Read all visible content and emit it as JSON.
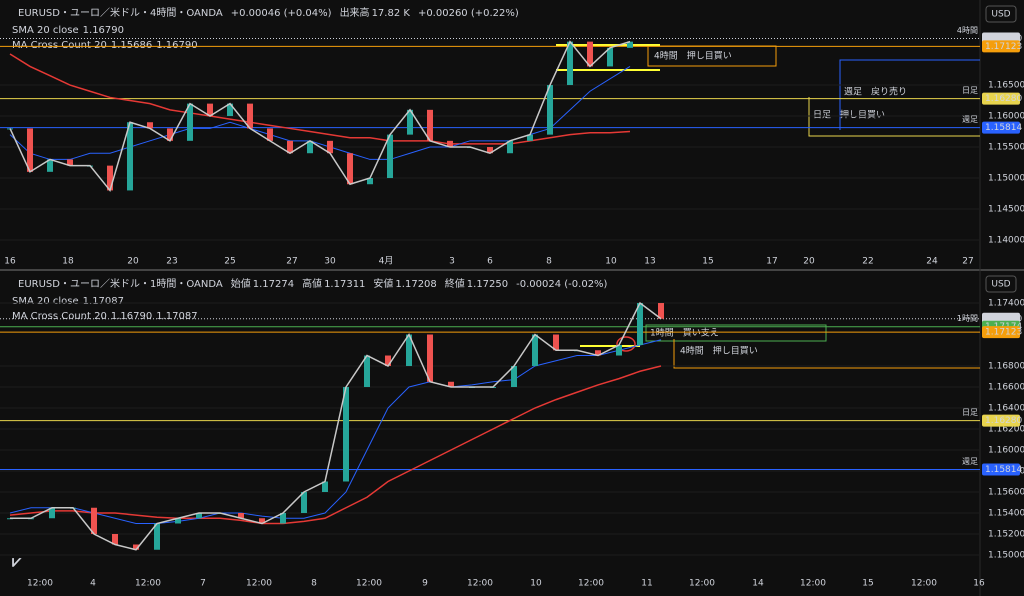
{
  "currency": "USD",
  "panels": [
    {
      "header": {
        "title": "EURUSD・ユーロ／米ドル・4時間・OANDA",
        "change": "+0.00046 (+0.04%)",
        "volume_label": "出来高",
        "volume": "17.82 K",
        "volume_change": "+0.00260 (+0.22%)"
      },
      "indicators": [
        {
          "name": "SMA 20 close",
          "values": [
            "1.16790"
          ]
        },
        {
          "name": "MA Cross Count 20",
          "values": [
            "1.15686",
            "1.16790"
          ]
        }
      ],
      "ylim": [
        1.1371,
        1.1742
      ],
      "yticks": [
        {
          "value": 1.165,
          "label": "1.16500"
        },
        {
          "value": 1.16,
          "label": "1.16000"
        },
        {
          "value": 1.155,
          "label": "1.15500"
        },
        {
          "value": 1.15,
          "label": "1.15000"
        },
        {
          "value": 1.145,
          "label": "1.14500"
        },
        {
          "value": 1.14,
          "label": "1.14000"
        }
      ],
      "xticks": [
        "16",
        "18",
        "20",
        "23",
        "25",
        "27",
        "30",
        "4月",
        "3",
        "6",
        "8",
        "10",
        "13",
        "15",
        "17",
        "20",
        "22",
        "24",
        "27"
      ],
      "close": [
        1.158,
        1.151,
        1.153,
        1.152,
        1.152,
        1.148,
        1.159,
        1.158,
        1.156,
        1.162,
        1.16,
        1.162,
        1.158,
        1.156,
        1.154,
        1.156,
        1.154,
        1.149,
        1.15,
        1.157,
        1.161,
        1.156,
        1.155,
        1.155,
        1.154,
        1.156,
        1.157,
        1.165,
        1.172,
        1.168,
        1.171,
        1.172
      ],
      "sma": [
        1.157,
        1.154,
        1.153,
        1.153,
        1.154,
        1.154,
        1.155,
        1.156,
        1.157,
        1.158,
        1.158,
        1.159,
        1.158,
        1.157,
        1.156,
        1.156,
        1.155,
        1.154,
        1.153,
        1.153,
        1.154,
        1.155,
        1.155,
        1.156,
        1.156,
        1.156,
        1.157,
        1.158,
        1.161,
        1.164,
        1.166,
        1.168
      ],
      "ma": [
        1.17,
        1.168,
        1.1665,
        1.165,
        1.164,
        1.163,
        1.1625,
        1.162,
        1.161,
        1.1605,
        1.16,
        1.1595,
        1.159,
        1.1585,
        1.158,
        1.1575,
        1.157,
        1.1565,
        1.1565,
        1.156,
        1.156,
        1.156,
        1.1555,
        1.1555,
        1.1555,
        1.1555,
        1.156,
        1.1565,
        1.157,
        1.1573,
        1.1573,
        1.1575
      ],
      "levels": [
        {
          "value": 1.1725,
          "label": "1.17250",
          "color": "#d1d4dc",
          "tag": "4時間"
        },
        {
          "value": 1.17123,
          "label": "1.17123",
          "color": "#f59e0b"
        },
        {
          "value": 1.1628,
          "label": "1.16280",
          "color": "#e8d44d",
          "tag": "日足"
        },
        {
          "value": 1.15814,
          "label": "1.15814",
          "color": "#2962ff",
          "tag": "週足"
        }
      ],
      "annotations": [
        "4時間　押し目買い",
        "週足　戻り売り",
        "日足　押し目買い"
      ]
    },
    {
      "header": {
        "title": "EURUSD・ユーロ／米ドル・1時間・OANDA",
        "ohlc": [
          [
            "始値",
            "1.17274"
          ],
          [
            "高値",
            "1.17311"
          ],
          [
            "安値",
            "1.17208"
          ],
          [
            "終値",
            "1.17250"
          ]
        ],
        "change": "-0.00024 (-0.02%)"
      },
      "indicators": [
        {
          "name": "SMA 20 close",
          "values": [
            "1.17087"
          ]
        },
        {
          "name": "MA Cross Count 20",
          "values": [
            "1.16790",
            "1.17087"
          ]
        }
      ],
      "ylim": [
        1.148571,
        1.17524
      ],
      "yticks": [
        {
          "value": 1.174,
          "label": "1.17400"
        },
        {
          "value": 1.168,
          "label": "1.16800"
        },
        {
          "value": 1.166,
          "label": "1.16600"
        },
        {
          "value": 1.164,
          "label": "1.16400"
        },
        {
          "value": 1.162,
          "label": "1.16200"
        },
        {
          "value": 1.16,
          "label": "1.16000"
        },
        {
          "value": 1.158,
          "label": "1.15800"
        },
        {
          "value": 1.156,
          "label": "1.15600"
        },
        {
          "value": 1.154,
          "label": "1.15400"
        },
        {
          "value": 1.152,
          "label": "1.15200"
        },
        {
          "value": 1.15,
          "label": "1.15000"
        }
      ],
      "xticks": [
        "12:00",
        "4",
        "12:00",
        "7",
        "12:00",
        "8",
        "12:00",
        "9",
        "12:00",
        "10",
        "12:00",
        "11",
        "12:00",
        "14",
        "12:00",
        "15",
        "12:00",
        "16"
      ],
      "close": [
        1.1535,
        1.1535,
        1.1545,
        1.1545,
        1.152,
        1.151,
        1.1505,
        1.153,
        1.1535,
        1.154,
        1.154,
        1.1535,
        1.153,
        1.154,
        1.156,
        1.157,
        1.166,
        1.169,
        1.168,
        1.171,
        1.1665,
        1.166,
        1.166,
        1.166,
        1.168,
        1.171,
        1.1695,
        1.1695,
        1.169,
        1.17,
        1.174,
        1.1725
      ],
      "sma": [
        1.154,
        1.1545,
        1.1545,
        1.1545,
        1.154,
        1.1535,
        1.153,
        1.153,
        1.1532,
        1.1535,
        1.154,
        1.154,
        1.1537,
        1.1535,
        1.1535,
        1.154,
        1.156,
        1.16,
        1.164,
        1.166,
        1.1665,
        1.166,
        1.1662,
        1.1665,
        1.1667,
        1.168,
        1.1685,
        1.169,
        1.169,
        1.1695,
        1.17,
        1.1705
      ],
      "ma": [
        1.1538,
        1.154,
        1.1542,
        1.1542,
        1.154,
        1.154,
        1.1538,
        1.1536,
        1.1535,
        1.1535,
        1.1535,
        1.1533,
        1.153,
        1.153,
        1.1532,
        1.1535,
        1.1545,
        1.1555,
        1.157,
        1.158,
        1.159,
        1.16,
        1.161,
        1.162,
        1.163,
        1.164,
        1.1648,
        1.1655,
        1.1662,
        1.1668,
        1.1675,
        1.168
      ],
      "levels": [
        {
          "value": 1.1725,
          "label": "1.17250",
          "color": "#d1d4dc"
        },
        {
          "value": 1.17174,
          "label": "1.17174",
          "color": "#4caf50",
          "tag": "1時間"
        },
        {
          "value": 1.17123,
          "label": "1.17123",
          "color": "#f59e0b"
        },
        {
          "value": 1.1628,
          "label": "1.16280",
          "color": "#e8d44d",
          "tag": "日足"
        },
        {
          "value": 1.15814,
          "label": "1.15814",
          "color": "#2962ff",
          "tag": "週足"
        }
      ],
      "annotations": [
        "1時間　買い支え",
        "4時間　押し目買い"
      ]
    }
  ]
}
